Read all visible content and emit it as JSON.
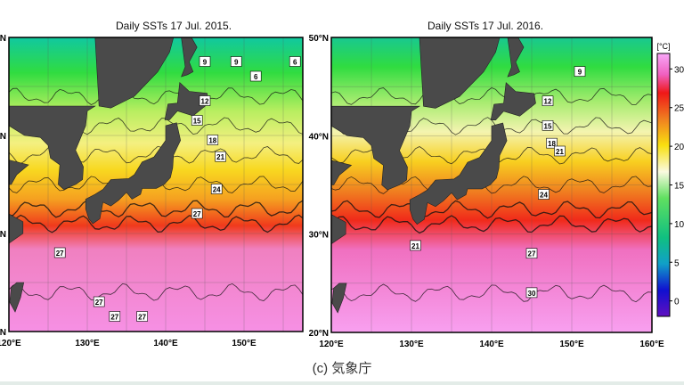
{
  "maps": [
    {
      "title": "Daily SSTs 17 Jul. 2015.",
      "lat_labels": [
        "N",
        "N",
        "N",
        "N"
      ],
      "lon_labels": [
        "120°E",
        "130°E",
        "140°E",
        "150°E"
      ],
      "contour_labels": [
        "9",
        "9",
        "6",
        "6",
        "12",
        "15",
        "18",
        "21",
        "24",
        "27",
        "27",
        "27",
        "27",
        "27"
      ]
    },
    {
      "title": "Daily SSTs 17 Jul. 2016.",
      "lat_labels": [
        "50°N",
        "40°N",
        "30°N",
        "20°N"
      ],
      "lon_labels": [
        "120°E",
        "130°E",
        "140°E",
        "150°E",
        "160°E"
      ],
      "contour_labels": [
        "9",
        "12",
        "15",
        "18",
        "21",
        "24",
        "21",
        "27",
        "30"
      ]
    }
  ],
  "colorbar": {
    "unit": "[°C]",
    "ticks": [
      "30",
      "25",
      "20",
      "15",
      "10",
      "5",
      "0"
    ],
    "range": [
      -2,
      32
    ]
  },
  "credit": "(c) 気象庁",
  "colors": {
    "land": "#4a4a4a",
    "warm": "#f47ee8",
    "hot": "#f22a1a",
    "mid": "#f9e51a",
    "cool": "#20d850",
    "cold": "#2230e0"
  }
}
